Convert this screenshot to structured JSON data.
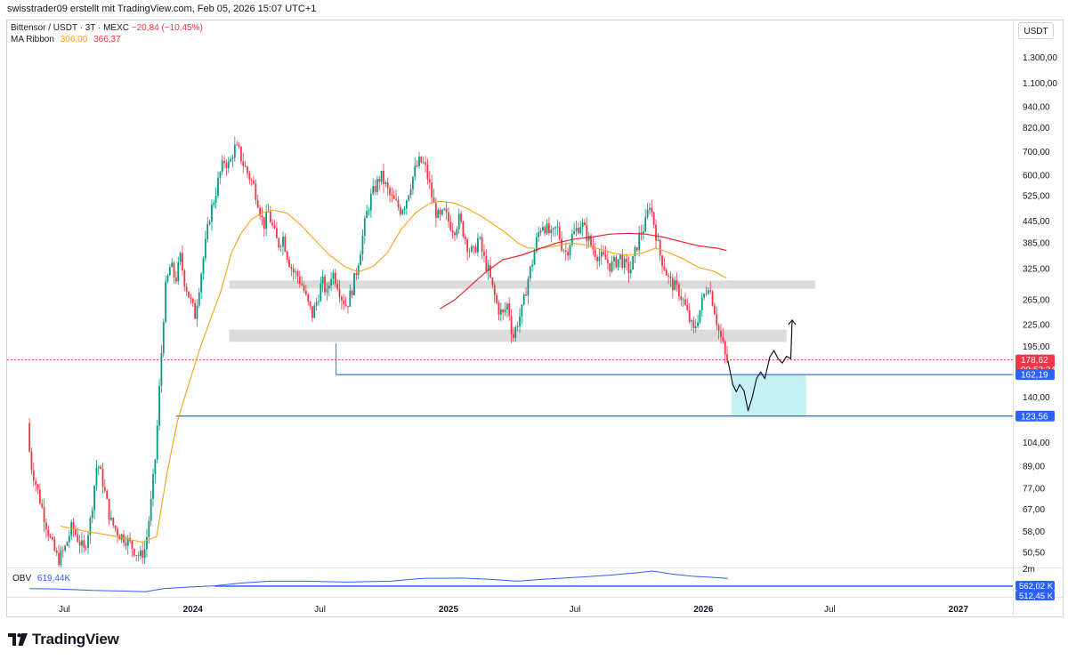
{
  "header": {
    "byline": "swisstrader09 erstellt mit TradingView.com, Feb 05, 2026 15:07 UTC+1",
    "symbol": "Bittensor / USDT · 3T · MEXC",
    "change": "−20,84 (−10,45%)",
    "ma_label": "MA Ribbon",
    "ma1_value": "306,00",
    "ma2_value": "366,37",
    "obv_label": "OBV",
    "obv_value": "619,44K",
    "currency": "USDT"
  },
  "branding": {
    "name": "TradingView",
    "logo_icon": "tradingview-logo-icon"
  },
  "colors": {
    "up": "#089981",
    "down": "#f23645",
    "ma_short": "#f7a21b",
    "ma_long": "#e8242f",
    "level_line": "#2962ff",
    "zone_grey": "#d9d9d9",
    "zone_cyan": "#b2ebf2",
    "obv": "#2962ff",
    "current_price": "#f23645"
  },
  "chart_data": [
    {
      "type": "candlestick",
      "title": "Bittensor / USDT · 3T · MEXC",
      "y_scale": "log",
      "ylim": [
        46,
        1450
      ],
      "xlim": [
        "2023-04-10",
        "2027-03-20"
      ],
      "y_tick_labels": [
        "1.300,00",
        "1.100,00",
        "940,00",
        "820,00",
        "700,00",
        "600,00",
        "525,00",
        "445,00",
        "385,00",
        "325,00",
        "265,00",
        "225,00",
        "195,00",
        "140,00",
        "104,00",
        "89,00",
        "77,00",
        "67,00",
        "58,00",
        "50,50"
      ],
      "x_tick_labels": [
        "Jul",
        "2024",
        "Jul",
        "2025",
        "Jul",
        "2026",
        "Jul",
        "2027"
      ],
      "price_path": [
        [
          "2023-05-12",
          118
        ],
        [
          "2023-05-16",
          92
        ],
        [
          "2023-05-25",
          78
        ],
        [
          "2023-06-05",
          64
        ],
        [
          "2023-06-15",
          54
        ],
        [
          "2023-06-25",
          48
        ],
        [
          "2023-07-05",
          52
        ],
        [
          "2023-07-15",
          60
        ],
        [
          "2023-07-22",
          56
        ],
        [
          "2023-08-01",
          51
        ],
        [
          "2023-08-10",
          62
        ],
        [
          "2023-08-20",
          92
        ],
        [
          "2023-08-28",
          80
        ],
        [
          "2023-09-08",
          62
        ],
        [
          "2023-09-20",
          57
        ],
        [
          "2023-10-01",
          55
        ],
        [
          "2023-10-10",
          52
        ],
        [
          "2023-10-20",
          49
        ],
        [
          "2023-10-28",
          52
        ],
        [
          "2023-11-05",
          70
        ],
        [
          "2023-11-12",
          98
        ],
        [
          "2023-11-18",
          160
        ],
        [
          "2023-11-25",
          280
        ],
        [
          "2023-12-03",
          335
        ],
        [
          "2023-12-10",
          300
        ],
        [
          "2023-12-17",
          350
        ],
        [
          "2023-12-23",
          300
        ],
        [
          "2023-12-31",
          265
        ],
        [
          "2024-01-07",
          240
        ],
        [
          "2024-01-14",
          300
        ],
        [
          "2024-01-21",
          370
        ],
        [
          "2024-01-28",
          460
        ],
        [
          "2024-02-04",
          520
        ],
        [
          "2024-02-11",
          600
        ],
        [
          "2024-02-18",
          660
        ],
        [
          "2024-02-25",
          640
        ],
        [
          "2024-03-03",
          720
        ],
        [
          "2024-03-10",
          700
        ],
        [
          "2024-03-17",
          640
        ],
        [
          "2024-03-24",
          600
        ],
        [
          "2024-03-31",
          560
        ],
        [
          "2024-04-07",
          500
        ],
        [
          "2024-04-14",
          430
        ],
        [
          "2024-04-21",
          470
        ],
        [
          "2024-04-28",
          420
        ],
        [
          "2024-05-05",
          380
        ],
        [
          "2024-05-12",
          400
        ],
        [
          "2024-05-19",
          350
        ],
        [
          "2024-05-26",
          320
        ],
        [
          "2024-06-02",
          310
        ],
        [
          "2024-06-09",
          290
        ],
        [
          "2024-06-16",
          260
        ],
        [
          "2024-06-23",
          240
        ],
        [
          "2024-06-30",
          265
        ],
        [
          "2024-07-07",
          300
        ],
        [
          "2024-07-14",
          275
        ],
        [
          "2024-07-21",
          320
        ],
        [
          "2024-07-28",
          300
        ],
        [
          "2024-08-04",
          270
        ],
        [
          "2024-08-11",
          255
        ],
        [
          "2024-08-18",
          280
        ],
        [
          "2024-08-25",
          320
        ],
        [
          "2024-09-01",
          380
        ],
        [
          "2024-09-08",
          460
        ],
        [
          "2024-09-15",
          520
        ],
        [
          "2024-09-22",
          560
        ],
        [
          "2024-09-29",
          600
        ],
        [
          "2024-10-06",
          560
        ],
        [
          "2024-10-13",
          520
        ],
        [
          "2024-10-20",
          500
        ],
        [
          "2024-10-27",
          480
        ],
        [
          "2024-11-03",
          500
        ],
        [
          "2024-11-10",
          560
        ],
        [
          "2024-11-17",
          620
        ],
        [
          "2024-11-24",
          660
        ],
        [
          "2024-12-01",
          640
        ],
        [
          "2024-12-08",
          560
        ],
        [
          "2024-12-15",
          480
        ],
        [
          "2024-12-22",
          450
        ],
        [
          "2024-12-29",
          470
        ],
        [
          "2025-01-05",
          440
        ],
        [
          "2025-01-12",
          420
        ],
        [
          "2025-01-19",
          450
        ],
        [
          "2025-01-26",
          410
        ],
        [
          "2025-02-02",
          370
        ],
        [
          "2025-02-09",
          360
        ],
        [
          "2025-02-16",
          400
        ],
        [
          "2025-02-23",
          350
        ],
        [
          "2025-03-02",
          320
        ],
        [
          "2025-03-09",
          280
        ],
        [
          "2025-03-16",
          250
        ],
        [
          "2025-03-23",
          240
        ],
        [
          "2025-03-30",
          260
        ],
        [
          "2025-04-06",
          205
        ],
        [
          "2025-04-13",
          230
        ],
        [
          "2025-04-20",
          250
        ],
        [
          "2025-04-27",
          300
        ],
        [
          "2025-05-04",
          340
        ],
        [
          "2025-05-11",
          400
        ],
        [
          "2025-05-18",
          440
        ],
        [
          "2025-05-25",
          420
        ],
        [
          "2025-06-01",
          400
        ],
        [
          "2025-06-08",
          430
        ],
        [
          "2025-06-15",
          380
        ],
        [
          "2025-06-22",
          360
        ],
        [
          "2025-06-29",
          400
        ],
        [
          "2025-07-06",
          420
        ],
        [
          "2025-07-13",
          440
        ],
        [
          "2025-07-20",
          410
        ],
        [
          "2025-07-27",
          380
        ],
        [
          "2025-08-03",
          360
        ],
        [
          "2025-08-10",
          350
        ],
        [
          "2025-08-17",
          345
        ],
        [
          "2025-08-24",
          330
        ],
        [
          "2025-08-31",
          340
        ],
        [
          "2025-09-07",
          350
        ],
        [
          "2025-09-14",
          330
        ],
        [
          "2025-09-21",
          320
        ],
        [
          "2025-09-28",
          360
        ],
        [
          "2025-10-05",
          410
        ],
        [
          "2025-10-12",
          430
        ],
        [
          "2025-10-19",
          500
        ],
        [
          "2025-10-26",
          430
        ],
        [
          "2025-11-02",
          360
        ],
        [
          "2025-11-09",
          330
        ],
        [
          "2025-11-16",
          300
        ],
        [
          "2025-11-23",
          290
        ],
        [
          "2025-11-30",
          280
        ],
        [
          "2025-12-07",
          260
        ],
        [
          "2025-12-14",
          235
        ],
        [
          "2025-12-21",
          215
        ],
        [
          "2025-12-28",
          240
        ],
        [
          "2026-01-04",
          270
        ],
        [
          "2026-01-11",
          295
        ],
        [
          "2026-01-18",
          260
        ],
        [
          "2026-01-25",
          220
        ],
        [
          "2026-02-01",
          196
        ],
        [
          "2026-02-05",
          178.62
        ]
      ],
      "ma_short_path": [
        [
          "2023-06-25",
          60
        ],
        [
          "2023-08-01",
          58
        ],
        [
          "2023-09-15",
          56
        ],
        [
          "2023-10-20",
          54
        ],
        [
          "2023-11-10",
          56
        ],
        [
          "2023-11-25",
          85
        ],
        [
          "2023-12-10",
          120
        ],
        [
          "2023-12-25",
          150
        ],
        [
          "2024-01-10",
          190
        ],
        [
          "2024-01-25",
          230
        ],
        [
          "2024-02-10",
          280
        ],
        [
          "2024-02-25",
          360
        ],
        [
          "2024-03-10",
          410
        ],
        [
          "2024-03-25",
          450
        ],
        [
          "2024-04-10",
          470
        ],
        [
          "2024-04-25",
          478
        ],
        [
          "2024-05-15",
          468
        ],
        [
          "2024-06-05",
          430
        ],
        [
          "2024-06-25",
          390
        ],
        [
          "2024-07-15",
          355
        ],
        [
          "2024-08-05",
          330
        ],
        [
          "2024-08-25",
          318
        ],
        [
          "2024-09-15",
          330
        ],
        [
          "2024-10-05",
          360
        ],
        [
          "2024-10-25",
          420
        ],
        [
          "2024-11-15",
          470
        ],
        [
          "2024-12-05",
          500
        ],
        [
          "2024-12-20",
          506
        ],
        [
          "2025-01-10",
          500
        ],
        [
          "2025-01-30",
          480
        ],
        [
          "2025-02-20",
          455
        ],
        [
          "2025-03-10",
          430
        ],
        [
          "2025-03-25",
          410
        ],
        [
          "2025-04-10",
          385
        ],
        [
          "2025-04-25",
          372
        ],
        [
          "2025-05-15",
          372
        ],
        [
          "2025-06-05",
          378
        ],
        [
          "2025-06-25",
          385
        ],
        [
          "2025-07-15",
          380
        ],
        [
          "2025-08-05",
          370
        ],
        [
          "2025-08-25",
          360
        ],
        [
          "2025-09-15",
          355
        ],
        [
          "2025-10-05",
          360
        ],
        [
          "2025-10-25",
          372
        ],
        [
          "2025-11-15",
          360
        ],
        [
          "2025-12-05",
          345
        ],
        [
          "2025-12-25",
          328
        ],
        [
          "2026-01-15",
          320
        ],
        [
          "2026-02-03",
          306
        ]
      ],
      "ma_long_path": [
        [
          "2024-12-20",
          250
        ],
        [
          "2025-01-10",
          265
        ],
        [
          "2025-02-01",
          290
        ],
        [
          "2025-02-25",
          320
        ],
        [
          "2025-03-20",
          345
        ],
        [
          "2025-04-15",
          355
        ],
        [
          "2025-05-10",
          370
        ],
        [
          "2025-06-05",
          385
        ],
        [
          "2025-07-01",
          395
        ],
        [
          "2025-07-25",
          400
        ],
        [
          "2025-08-20",
          408
        ],
        [
          "2025-09-15",
          410
        ],
        [
          "2025-10-10",
          408
        ],
        [
          "2025-11-05",
          400
        ],
        [
          "2025-12-01",
          388
        ],
        [
          "2025-12-25",
          378
        ],
        [
          "2026-01-20",
          372
        ],
        [
          "2026-02-03",
          366.37
        ]
      ],
      "current_price": "178,62",
      "countdown": "09:52:24",
      "levels": [
        {
          "value": 162.19,
          "label": "162,19",
          "from": "2024-07-24"
        },
        {
          "value": 123.56,
          "label": "123,56",
          "from": "2023-12-08"
        }
      ],
      "zones": [
        {
          "low": 285,
          "high": 301,
          "from": "2024-02-22",
          "to": "2026-06-10"
        },
        {
          "low": 201,
          "high": 218,
          "from": "2024-02-22",
          "to": "2026-04-30"
        },
        {
          "low": 123.56,
          "high": 162.19,
          "from": "2026-02-10",
          "to": "2026-05-28"
        }
      ],
      "projection": [
        [
          "2026-02-05",
          178
        ],
        [
          "2026-02-12",
          152
        ],
        [
          "2026-02-17",
          145
        ],
        [
          "2026-02-22",
          152
        ],
        [
          "2026-02-28",
          146
        ],
        [
          "2026-03-06",
          128
        ],
        [
          "2026-03-12",
          140
        ],
        [
          "2026-03-18",
          158
        ],
        [
          "2026-03-24",
          165
        ],
        [
          "2026-03-30",
          158
        ],
        [
          "2026-04-06",
          182
        ],
        [
          "2026-04-12",
          190
        ],
        [
          "2026-04-18",
          180
        ],
        [
          "2026-04-24",
          175
        ],
        [
          "2026-04-30",
          183
        ],
        [
          "2026-05-06",
          180
        ],
        [
          "2026-05-08",
          232
        ]
      ]
    },
    {
      "type": "line",
      "title": "OBV",
      "values_label": "619,44K",
      "y_tick_labels": [
        "2m"
      ],
      "level_labels": [
        "562,02 K",
        "512,45 K"
      ],
      "series": [
        {
          "values": [
            [
              "2023-05-12",
              0.05
            ],
            [
              "2023-06-20",
              0.03
            ],
            [
              "2023-08-10",
              -0.05
            ],
            [
              "2023-09-20",
              -0.08
            ],
            [
              "2023-10-25",
              -0.12
            ],
            [
              "2023-11-20",
              0.05
            ],
            [
              "2023-12-20",
              0.12
            ],
            [
              "2024-02-01",
              0.2
            ],
            [
              "2024-03-10",
              0.35
            ],
            [
              "2024-04-20",
              0.45
            ],
            [
              "2024-06-10",
              0.45
            ],
            [
              "2024-08-10",
              0.4
            ],
            [
              "2024-10-10",
              0.45
            ],
            [
              "2024-11-25",
              0.6
            ],
            [
              "2025-01-20",
              0.62
            ],
            [
              "2025-03-01",
              0.55
            ],
            [
              "2025-04-10",
              0.45
            ],
            [
              "2025-05-15",
              0.55
            ],
            [
              "2025-07-10",
              0.68
            ],
            [
              "2025-08-20",
              0.78
            ],
            [
              "2025-09-30",
              0.92
            ],
            [
              "2025-10-20",
              1.0
            ],
            [
              "2025-11-15",
              0.85
            ],
            [
              "2025-12-15",
              0.72
            ],
            [
              "2026-01-15",
              0.66
            ],
            [
              "2026-02-05",
              0.6
            ]
          ]
        }
      ]
    }
  ]
}
